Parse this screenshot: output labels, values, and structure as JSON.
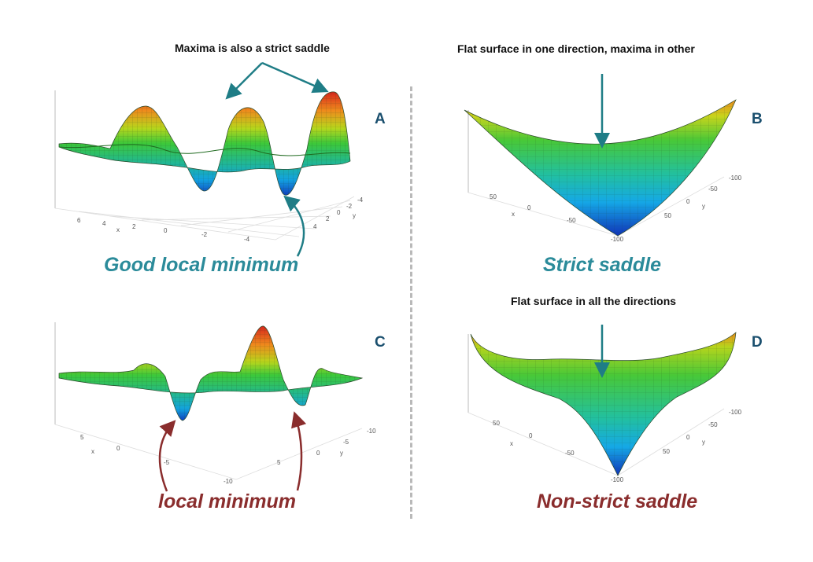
{
  "panels": {
    "A": {
      "letter": "A",
      "annotation": "Maxima is also a strict saddle",
      "caption": "Good local minimum",
      "x_ticks": [
        "6",
        "4",
        "2",
        "0",
        "-2",
        "-4"
      ],
      "y_ticks": [
        "-4",
        "-2",
        "0",
        "2",
        "4"
      ],
      "x_axis": "x",
      "y_axis": "y"
    },
    "B": {
      "letter": "B",
      "annotation": "Flat surface in one direction, maxima in other",
      "caption": "Strict saddle",
      "x_ticks": [
        "50",
        "0",
        "-50",
        "-100"
      ],
      "y_ticks": [
        "-100",
        "-50",
        "0",
        "50"
      ],
      "x_axis": "x",
      "y_axis": "y"
    },
    "C": {
      "letter": "C",
      "annotation": "",
      "caption": "local minimum",
      "x_ticks": [
        "5",
        "0",
        "-5",
        "-10"
      ],
      "y_ticks": [
        "-10",
        "-5",
        "0",
        "5"
      ],
      "x_axis": "x",
      "y_axis": "y"
    },
    "D": {
      "letter": "D",
      "annotation": "Flat surface in all the directions",
      "caption": "Non-strict saddle",
      "x_ticks": [
        "50",
        "0",
        "-50",
        "-100"
      ],
      "y_ticks": [
        "-100",
        "-50",
        "0",
        "50"
      ],
      "x_axis": "x",
      "y_axis": "y"
    }
  },
  "colors": {
    "teal_arrow": "#1f7d86",
    "red_arrow": "#8a2d2d",
    "caption_teal": "#2b8b9a",
    "caption_red": "#8a2d2d",
    "letter": "#1a4f6e"
  }
}
